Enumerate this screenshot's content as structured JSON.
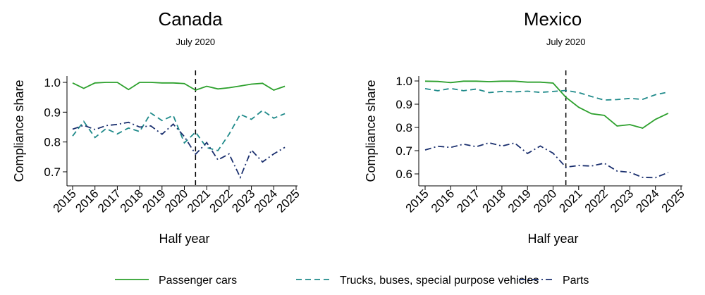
{
  "legend": [
    {
      "name": "Passenger cars",
      "color": "#2ca02c",
      "dash": "solid"
    },
    {
      "name": "Trucks, buses, special purpose vehicles",
      "color": "#1f8a8a",
      "dash": "dashed"
    },
    {
      "name": "Parts",
      "color": "#1a2f6e",
      "dash": "dashdot"
    }
  ],
  "chart_data": [
    {
      "type": "line",
      "title": "Canada",
      "xlabel": "Half year",
      "ylabel": "Compliance share",
      "xlim": [
        2015,
        2025
      ],
      "ylim": [
        0.67,
        1.02
      ],
      "xticks": [
        "2015",
        "2016",
        "2017",
        "2018",
        "2019",
        "2020",
        "2021",
        "2022",
        "2023",
        "2024",
        "2025"
      ],
      "yticks": [
        "0.7",
        "0.8",
        "0.9",
        "1.0"
      ],
      "vline": {
        "x": 2020.5,
        "label": "July 2020"
      },
      "x": [
        2015.0,
        2015.5,
        2016.0,
        2016.5,
        2017.0,
        2017.5,
        2018.0,
        2018.5,
        2019.0,
        2019.5,
        2020.0,
        2020.5,
        2021.0,
        2021.5,
        2022.0,
        2022.5,
        2023.0,
        2023.5,
        2024.0,
        2024.5
      ],
      "series": [
        {
          "name": "Passenger cars",
          "values": [
            0.998,
            0.98,
            0.998,
            1.0,
            1.0,
            0.976,
            1.0,
            1.0,
            0.998,
            0.998,
            0.996,
            0.974,
            0.987,
            0.978,
            0.982,
            0.988,
            0.994,
            0.997,
            0.974,
            0.987
          ]
        },
        {
          "name": "Trucks, buses, special purpose vehicles",
          "values": [
            0.82,
            0.869,
            0.815,
            0.845,
            0.827,
            0.847,
            0.835,
            0.897,
            0.872,
            0.889,
            0.797,
            0.833,
            0.781,
            0.771,
            0.826,
            0.893,
            0.876,
            0.906,
            0.88,
            0.895
          ]
        },
        {
          "name": "Parts",
          "values": [
            0.843,
            0.856,
            0.842,
            0.855,
            0.859,
            0.866,
            0.85,
            0.854,
            0.826,
            0.86,
            0.818,
            0.759,
            0.798,
            0.74,
            0.76,
            0.681,
            0.773,
            0.733,
            0.76,
            0.782
          ]
        }
      ]
    },
    {
      "type": "line",
      "title": "Mexico",
      "xlabel": "Half year",
      "ylabel": "Compliance share",
      "xlim": [
        2015,
        2025
      ],
      "ylim": [
        0.57,
        1.02
      ],
      "xticks": [
        "2015",
        "2016",
        "2017",
        "2018",
        "2019",
        "2020",
        "2021",
        "2022",
        "2023",
        "2024",
        "2025"
      ],
      "yticks": [
        "0.6",
        "0.7",
        "0.8",
        "0.9",
        "1.0"
      ],
      "vline": {
        "x": 2020.5,
        "label": "July 2020"
      },
      "x": [
        2015.0,
        2015.5,
        2016.0,
        2016.5,
        2017.0,
        2017.5,
        2018.0,
        2018.5,
        2019.0,
        2019.5,
        2020.0,
        2020.5,
        2021.0,
        2021.5,
        2022.0,
        2022.5,
        2023.0,
        2023.5,
        2024.0,
        2024.5
      ],
      "series": [
        {
          "name": "Passenger cars",
          "values": [
            0.999,
            0.998,
            0.993,
            0.999,
            0.999,
            0.997,
            0.999,
            0.999,
            0.995,
            0.995,
            0.991,
            0.93,
            0.887,
            0.859,
            0.852,
            0.806,
            0.812,
            0.797,
            0.835,
            0.861
          ]
        },
        {
          "name": "Trucks, buses, special purpose vehicles",
          "values": [
            0.967,
            0.958,
            0.968,
            0.958,
            0.965,
            0.95,
            0.955,
            0.953,
            0.956,
            0.951,
            0.955,
            0.959,
            0.95,
            0.933,
            0.918,
            0.92,
            0.925,
            0.921,
            0.941,
            0.952
          ]
        },
        {
          "name": "Parts",
          "values": [
            0.703,
            0.719,
            0.714,
            0.728,
            0.717,
            0.734,
            0.72,
            0.733,
            0.688,
            0.72,
            0.689,
            0.629,
            0.636,
            0.634,
            0.646,
            0.612,
            0.607,
            0.585,
            0.584,
            0.606
          ]
        }
      ]
    }
  ]
}
